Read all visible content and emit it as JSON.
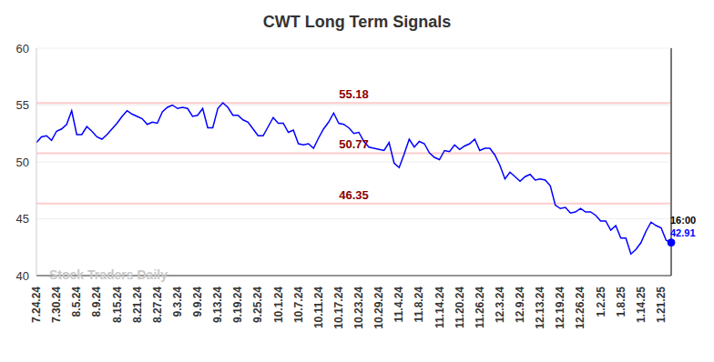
{
  "chart_data": {
    "type": "line",
    "title": "CWT Long Term Signals",
    "watermark": "Stock Traders Daily",
    "annotations": [
      "16:00"
    ],
    "color": "#0000ff",
    "ylim": [
      40,
      60
    ],
    "yticks": [
      40,
      45,
      50,
      55,
      60
    ],
    "grid": true,
    "hlines": [
      55.18,
      50.77,
      46.35
    ],
    "categories": [
      "7.24.24",
      null,
      null,
      null,
      "7.30.24",
      null,
      null,
      null,
      "8.5.24",
      null,
      null,
      null,
      "8.9.24",
      null,
      null,
      null,
      "8.15.24",
      null,
      null,
      null,
      "8.21.24",
      null,
      null,
      null,
      "8.27.24",
      null,
      null,
      null,
      "9.3.24",
      null,
      null,
      null,
      "9.9.24",
      null,
      null,
      null,
      "9.13.24",
      null,
      null,
      null,
      "9.19.24",
      null,
      null,
      null,
      "9.25.24",
      null,
      null,
      null,
      "10.1.24",
      null,
      null,
      null,
      "10.7.24",
      null,
      null,
      null,
      "10.11.24",
      null,
      null,
      null,
      "10.17.24",
      null,
      null,
      null,
      "10.23.24",
      null,
      null,
      null,
      "10.29.24",
      null,
      null,
      null,
      "11.4.24",
      null,
      null,
      null,
      "11.8.24",
      null,
      null,
      null,
      "11.14.24",
      null,
      null,
      null,
      "11.20.24",
      null,
      null,
      null,
      "11.26.24",
      null,
      null,
      null,
      "12.3.24",
      null,
      null,
      null,
      "12.9.24",
      null,
      null,
      null,
      "12.13.24",
      null,
      null,
      null,
      "12.19.24",
      null,
      null,
      null,
      "12.26.24",
      null,
      null,
      null,
      "1.2.25",
      null,
      null,
      null,
      "1.8.25",
      null,
      null,
      null,
      "1.14.25",
      null,
      null,
      null,
      "1.21.25",
      null,
      null
    ],
    "values": [
      51.7,
      52.2,
      52.3,
      51.9,
      52.7,
      52.9,
      53.3,
      54.5,
      52.4,
      52.4,
      53.1,
      52.7,
      52.2,
      52.0,
      52.4,
      52.9,
      53.4,
      54.0,
      54.5,
      54.2,
      54.0,
      53.8,
      53.3,
      53.5,
      53.4,
      54.4,
      54.8,
      55.0,
      54.7,
      54.8,
      54.7,
      54.0,
      54.1,
      54.7,
      53.0,
      53.0,
      54.7,
      55.2,
      54.8,
      54.1,
      54.1,
      53.7,
      53.5,
      52.9,
      52.3,
      52.3,
      53.1,
      53.9,
      53.4,
      53.4,
      52.6,
      52.8,
      51.6,
      51.5,
      51.6,
      51.2,
      52.1,
      52.9,
      53.5,
      54.3,
      53.4,
      53.3,
      53.0,
      52.5,
      52.6,
      51.8,
      51.3,
      51.2,
      51.1,
      51.0,
      51.7,
      49.9,
      49.5,
      50.7,
      52.0,
      51.3,
      51.8,
      51.6,
      50.8,
      50.4,
      50.2,
      51.0,
      50.9,
      51.5,
      51.1,
      51.4,
      51.6,
      52.0,
      51.0,
      51.2,
      51.2,
      50.6,
      49.7,
      48.5,
      49.1,
      48.7,
      48.3,
      48.7,
      48.9,
      48.4,
      48.5,
      48.4,
      47.9,
      46.2,
      45.9,
      46.0,
      45.5,
      45.6,
      45.9,
      45.6,
      45.6,
      45.3,
      44.8,
      44.8,
      44.0,
      44.4,
      43.3,
      43.3,
      41.9,
      42.3,
      42.9,
      43.9,
      44.7,
      44.4,
      44.2,
      43.1,
      42.91
    ]
  }
}
